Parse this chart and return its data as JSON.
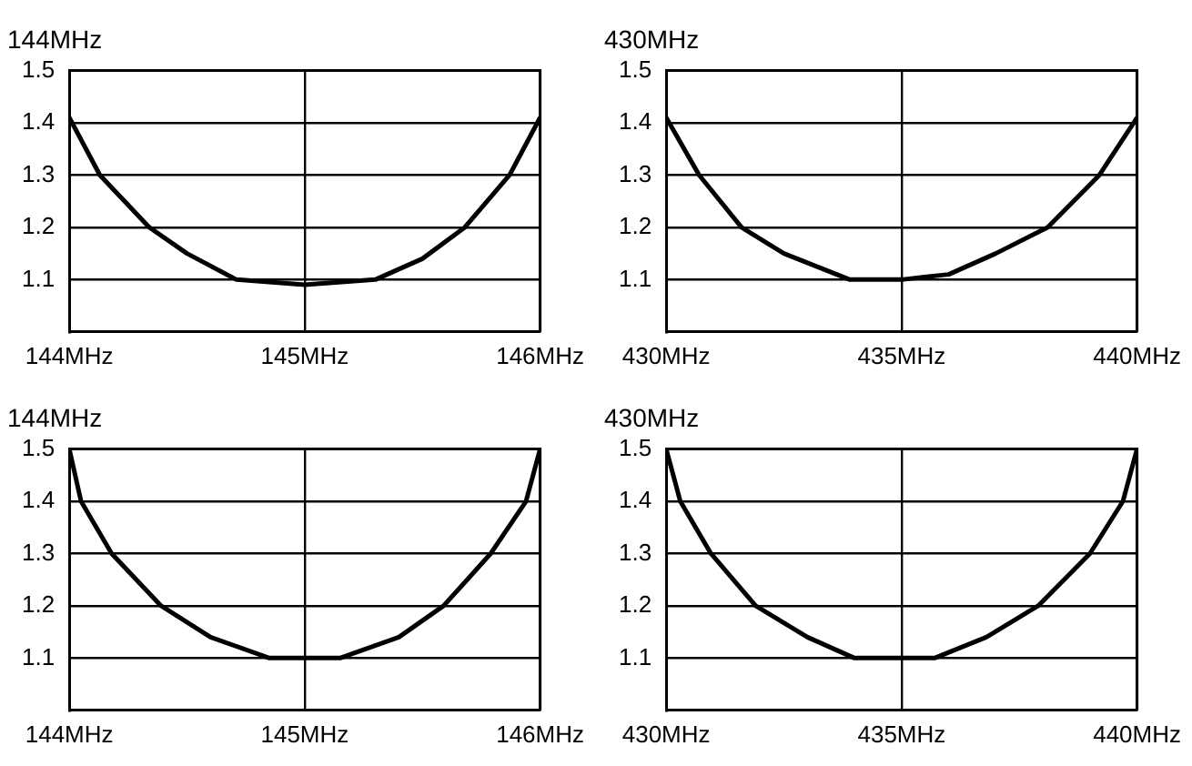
{
  "chart_data": [
    {
      "type": "line",
      "title": "144MHz",
      "x": [
        144,
        144.13,
        144.34,
        144.5,
        144.71,
        145,
        145.3,
        145.5,
        145.68,
        145.87,
        146
      ],
      "values": [
        1.41,
        1.3,
        1.2,
        1.15,
        1.1,
        1.09,
        1.1,
        1.14,
        1.2,
        1.3,
        1.41
      ],
      "color": "#000000",
      "xlim": [
        144,
        146
      ],
      "xticks": [
        {
          "value": 144,
          "label": "144MHz"
        },
        {
          "value": 145,
          "label": "145MHz"
        },
        {
          "value": 146,
          "label": "146MHz"
        }
      ],
      "ylim": [
        1.0,
        1.5
      ],
      "yticks": [
        1.1,
        1.2,
        1.3,
        1.4,
        1.5
      ],
      "grid": true,
      "marker": "none",
      "line_style": "solid"
    },
    {
      "type": "line",
      "title": "430MHz",
      "x": [
        430,
        430.7,
        431.6,
        432.5,
        433.9,
        435,
        436,
        437,
        438.1,
        439.2,
        440
      ],
      "values": [
        1.41,
        1.3,
        1.2,
        1.15,
        1.1,
        1.1,
        1.11,
        1.15,
        1.2,
        1.3,
        1.41
      ],
      "color": "#000000",
      "xlim": [
        430,
        440
      ],
      "xticks": [
        {
          "value": 430,
          "label": "430MHz"
        },
        {
          "value": 435,
          "label": "435MHz"
        },
        {
          "value": 440,
          "label": "440MHz"
        }
      ],
      "ylim": [
        1.0,
        1.5
      ],
      "yticks": [
        1.1,
        1.2,
        1.3,
        1.4,
        1.5
      ],
      "grid": true,
      "marker": "none",
      "line_style": "solid"
    },
    {
      "type": "line",
      "title": "144MHz",
      "x": [
        144,
        144.05,
        144.18,
        144.39,
        144.6,
        144.85,
        145,
        145.15,
        145.4,
        145.59,
        145.79,
        145.94,
        146
      ],
      "values": [
        1.5,
        1.4,
        1.3,
        1.2,
        1.14,
        1.1,
        1.1,
        1.1,
        1.14,
        1.2,
        1.3,
        1.4,
        1.5
      ],
      "color": "#000000",
      "xlim": [
        144,
        146
      ],
      "xticks": [
        {
          "value": 144,
          "label": "144MHz"
        },
        {
          "value": 145,
          "label": "145MHz"
        },
        {
          "value": 146,
          "label": "146MHz"
        }
      ],
      "ylim": [
        1.0,
        1.5
      ],
      "yticks": [
        1.1,
        1.2,
        1.3,
        1.4,
        1.5
      ],
      "grid": true,
      "marker": "none",
      "line_style": "solid"
    },
    {
      "type": "line",
      "title": "430MHz",
      "x": [
        430,
        430.3,
        430.95,
        431.9,
        433,
        434,
        435,
        435.7,
        436.8,
        437.9,
        439,
        439.7,
        440
      ],
      "values": [
        1.5,
        1.4,
        1.3,
        1.2,
        1.14,
        1.1,
        1.1,
        1.1,
        1.14,
        1.2,
        1.3,
        1.4,
        1.5
      ],
      "color": "#000000",
      "xlim": [
        430,
        440
      ],
      "xticks": [
        {
          "value": 430,
          "label": "430MHz"
        },
        {
          "value": 435,
          "label": "435MHz"
        },
        {
          "value": 440,
          "label": "440MHz"
        }
      ],
      "ylim": [
        1.0,
        1.5
      ],
      "yticks": [
        1.1,
        1.2,
        1.3,
        1.4,
        1.5
      ],
      "grid": true,
      "marker": "none",
      "line_style": "solid"
    }
  ]
}
